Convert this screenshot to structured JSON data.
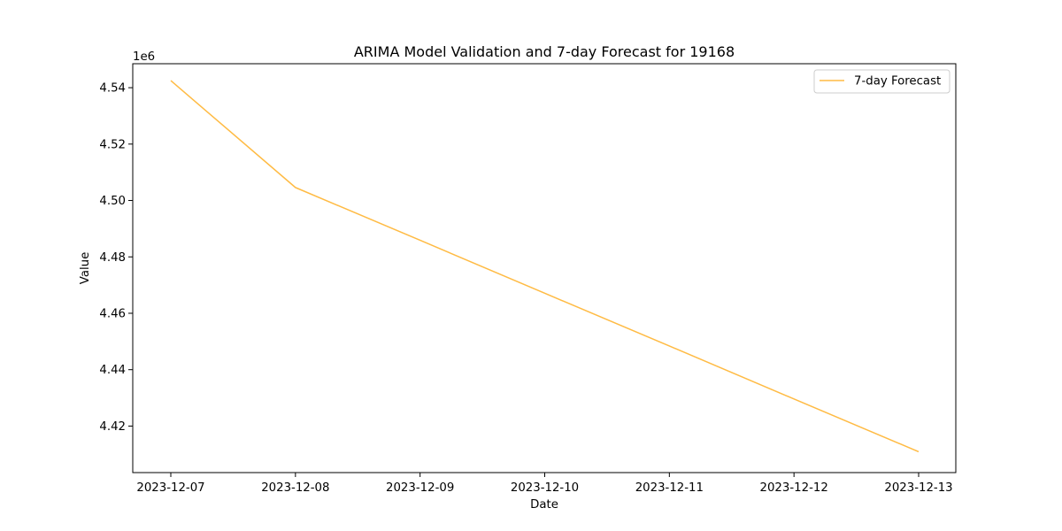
{
  "chart_data": {
    "type": "line",
    "title": "ARIMA Model Validation and 7-day Forecast for 19168",
    "xlabel": "Date",
    "ylabel": "Value",
    "y_offset_label": "1e6",
    "y_multiplier": 1000000,
    "x": [
      "2023-12-07",
      "2023-12-08",
      "2023-12-09",
      "2023-12-10",
      "2023-12-11",
      "2023-12-12",
      "2023-12-13"
    ],
    "x_tick_labels": [
      "2023-12-07",
      "2023-12-08",
      "2023-12-09",
      "2023-12-10",
      "2023-12-11",
      "2023-12-12",
      "2023-12-13"
    ],
    "y_ticks": [
      4.42,
      4.44,
      4.46,
      4.48,
      4.5,
      4.52,
      4.54
    ],
    "y_tick_labels": [
      "4.42",
      "4.44",
      "4.46",
      "4.48",
      "4.50",
      "4.52",
      "4.54"
    ],
    "ylim": [
      4.4035,
      4.5485
    ],
    "grid": false,
    "legend_position": "upper-right",
    "series": [
      {
        "name": "7-day Forecast",
        "color": "#FFBB44",
        "values": [
          4.5425,
          4.5046,
          4.4859,
          4.4671,
          4.4484,
          4.4296,
          4.4109
        ]
      }
    ]
  }
}
